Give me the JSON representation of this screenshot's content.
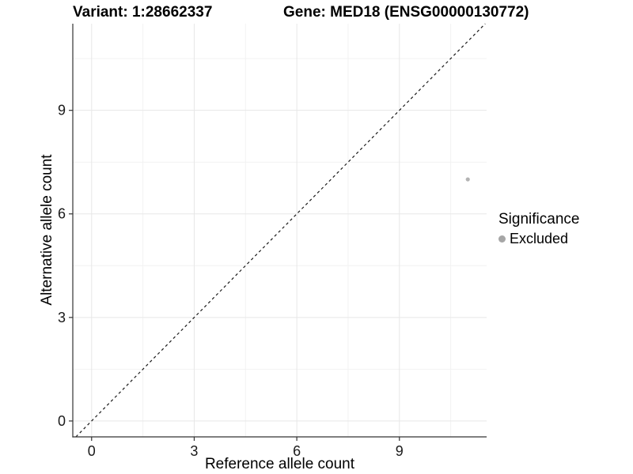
{
  "header": {
    "variant_title": "Variant: 1:28662337",
    "gene_title": "Gene: MED18 (ENSG00000130772)"
  },
  "chart_data": {
    "type": "scatter",
    "titles": {
      "left": "Variant: 1:28662337",
      "right": "Gene: MED18 (ENSG00000130772)"
    },
    "xlabel": "Reference allele count",
    "ylabel": "Alternative allele count",
    "xticks": [
      0,
      3,
      6,
      9
    ],
    "yticks": [
      0,
      3,
      6,
      9
    ],
    "minor_xticks": [
      1.5,
      4.5,
      7.5,
      10.5
    ],
    "minor_yticks": [
      1.5,
      4.5,
      7.5,
      10.5
    ],
    "xlim": [
      -0.55,
      11.55
    ],
    "ylim": [
      -0.46,
      11.51
    ],
    "grid": "major+minor",
    "series": [
      {
        "name": "Excluded",
        "color": "#b3b3b3",
        "point_radius": 2.6,
        "points": [
          {
            "x": 11,
            "y": 7
          }
        ]
      }
    ],
    "reference_line": {
      "slope": 1,
      "intercept": 0,
      "style": "dashed",
      "color": "#1a1a1a"
    },
    "legend": {
      "position": "right",
      "title": "Significance",
      "items": [
        {
          "label": "Excluded",
          "color": "#a6a6a6"
        }
      ]
    }
  },
  "colors": {
    "background": "#ffffff",
    "axis_line": "#333333",
    "tick_mark": "#333333",
    "tick_label": "#1a1a1a",
    "grid_major": "#e7e7e7",
    "grid_minor": "#f2f2f2"
  }
}
